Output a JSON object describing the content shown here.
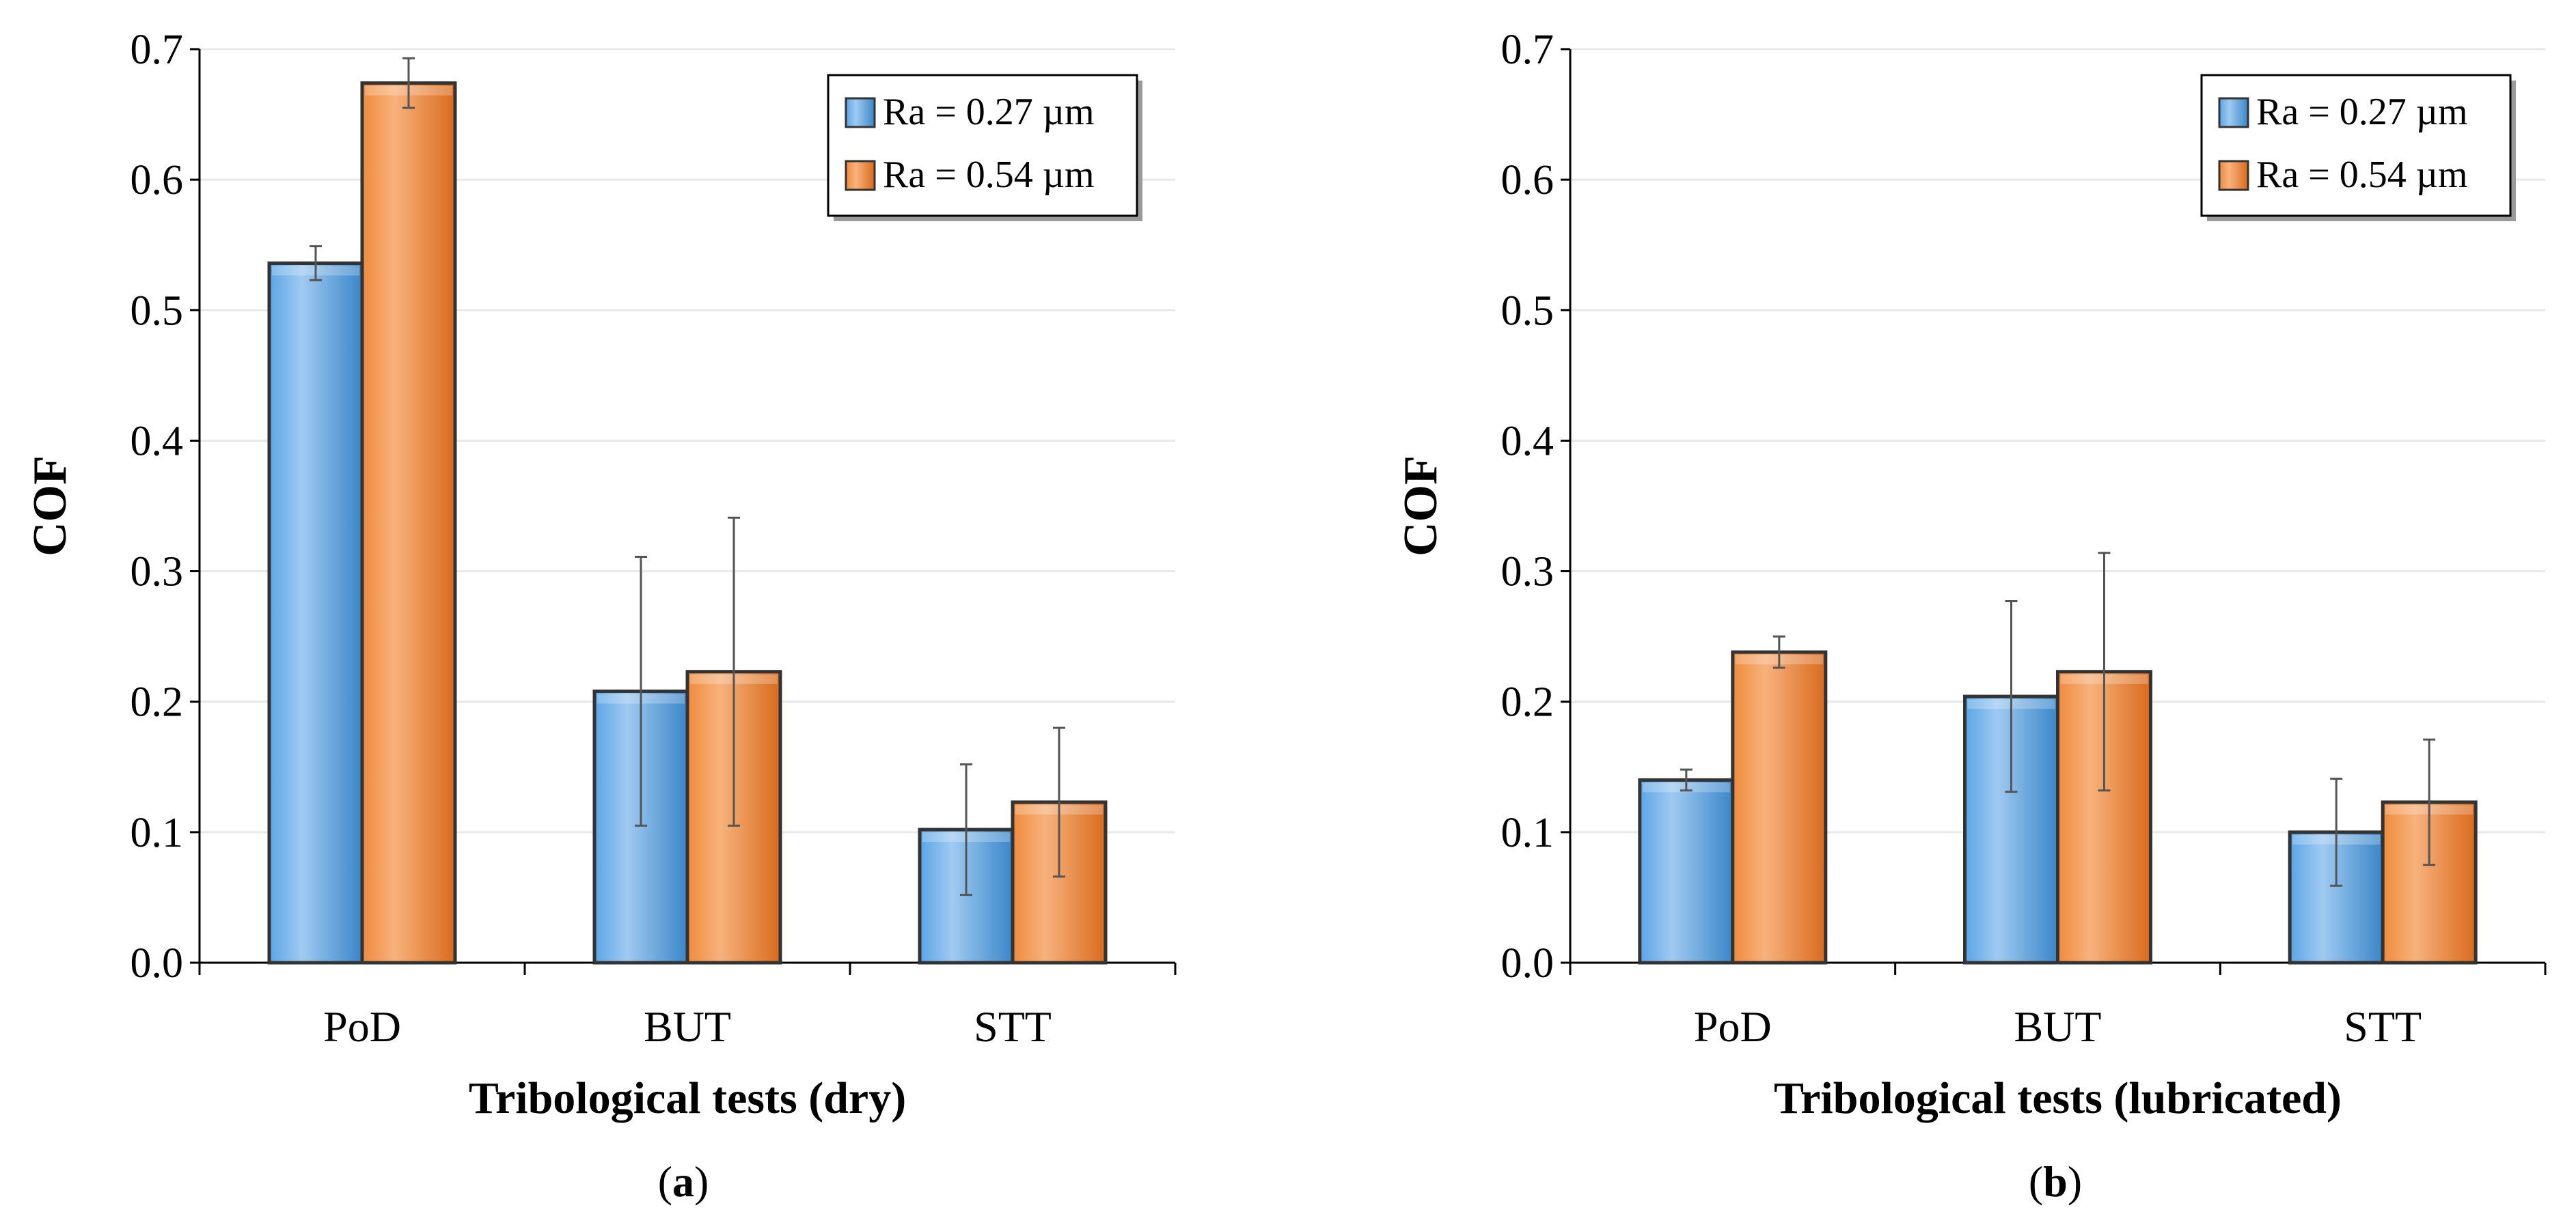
{
  "colors": {
    "series1": "#5aa5e6",
    "series1_light": "#9fcaf1",
    "series1_dark": "#3a86c8",
    "series2": "#f08a3c",
    "series2_light": "#f7b27c",
    "series2_dark": "#d96a1c",
    "outline": "#333333",
    "grid": "#e8e8e8"
  },
  "chart_data": [
    {
      "type": "bar",
      "panel_label_open": "(",
      "panel_label_letter": "a",
      "panel_label_close": ")",
      "xlabel": "Tribological tests (dry)",
      "ylabel": "COF",
      "ylim": [
        0,
        0.7
      ],
      "yticks": [
        "0.0",
        "0.1",
        "0.2",
        "0.3",
        "0.4",
        "0.5",
        "0.6",
        "0.7"
      ],
      "grid": true,
      "legend_position": "top-right",
      "categories": [
        "PoD",
        "BUT",
        "STT"
      ],
      "series": [
        {
          "name": "Ra = 0.27 µm",
          "values": [
            0.536,
            0.208,
            0.102
          ],
          "errors": [
            0.013,
            0.103,
            0.05
          ]
        },
        {
          "name": "Ra = 0.54 µm",
          "values": [
            0.674,
            0.223,
            0.123
          ],
          "errors": [
            0.019,
            0.118,
            0.057
          ]
        }
      ]
    },
    {
      "type": "bar",
      "panel_label_open": "(",
      "panel_label_letter": "b",
      "panel_label_close": ")",
      "xlabel": "Tribological tests (lubricated)",
      "ylabel": "COF",
      "ylim": [
        0,
        0.7
      ],
      "yticks": [
        "0.0",
        "0.1",
        "0.2",
        "0.3",
        "0.4",
        "0.5",
        "0.6",
        "0.7"
      ],
      "grid": true,
      "legend_position": "top-right",
      "categories": [
        "PoD",
        "BUT",
        "STT"
      ],
      "series": [
        {
          "name": "Ra = 0.27 µm",
          "values": [
            0.14,
            0.204,
            0.1
          ],
          "errors": [
            0.008,
            0.073,
            0.041
          ]
        },
        {
          "name": "Ra = 0.54 µm",
          "values": [
            0.238,
            0.223,
            0.123
          ],
          "errors": [
            0.012,
            0.091,
            0.048
          ]
        }
      ]
    }
  ]
}
